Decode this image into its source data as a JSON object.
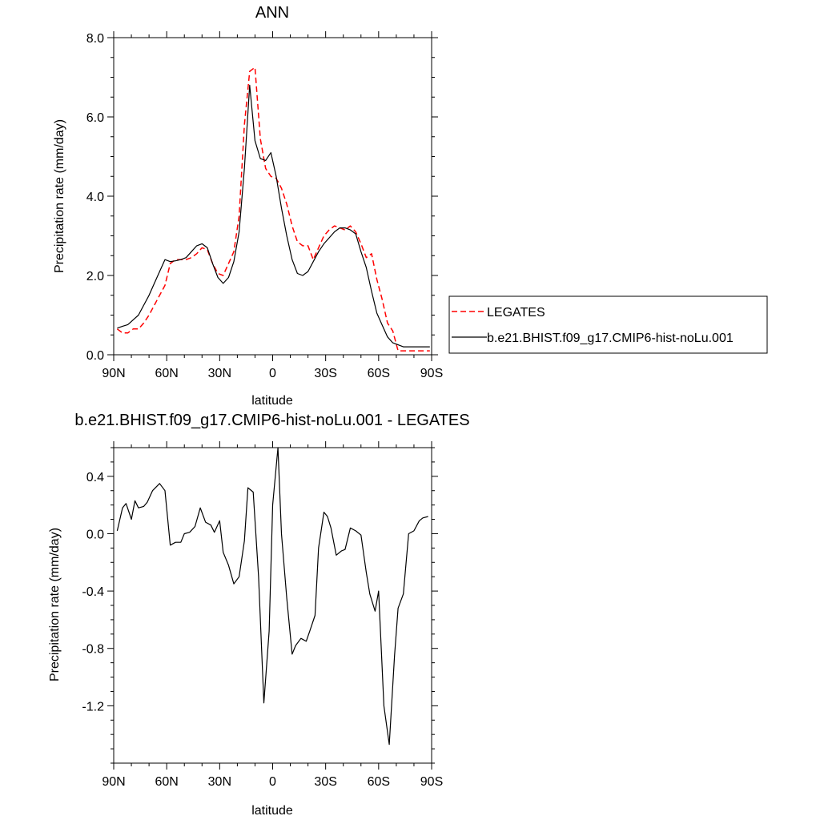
{
  "chart_data": [
    {
      "type": "line",
      "title": "ANN",
      "xlabel": "latitude",
      "ylabel": "Precipitation rate (mm/day)",
      "xlim": [
        90,
        -90
      ],
      "ylim": [
        0,
        8
      ],
      "x_ticks": [
        90,
        60,
        30,
        0,
        -30,
        -60,
        -90
      ],
      "x_tick_labels": [
        "90N",
        "60N",
        "30N",
        "0",
        "30S",
        "60S",
        "90S"
      ],
      "y_ticks": [
        0,
        2,
        4,
        6,
        8
      ],
      "y_tick_labels": [
        "0.0",
        "2.0",
        "4.0",
        "6.0",
        "8.0"
      ],
      "legend_position": "right",
      "x": [
        88,
        85,
        82,
        79,
        76,
        73,
        70,
        67,
        64,
        61,
        58,
        55,
        52,
        49,
        46,
        43,
        40,
        37,
        34,
        31,
        28,
        25,
        22,
        19,
        16,
        13,
        10,
        7,
        4,
        1,
        -2,
        -5,
        -8,
        -11,
        -14,
        -17,
        -20,
        -23,
        -26,
        -29,
        -32,
        -35,
        -38,
        -41,
        -44,
        -47,
        -50,
        -53,
        -56,
        -59,
        -62,
        -65,
        -68,
        -71,
        -74,
        -77,
        -80,
        -83,
        -86,
        -89
      ],
      "series": [
        {
          "name": "LEGATES",
          "color": "#ff0000",
          "dash": "dashed",
          "values": [
            0.65,
            0.55,
            0.55,
            0.65,
            0.65,
            0.8,
            1.0,
            1.25,
            1.5,
            1.75,
            2.3,
            2.4,
            2.4,
            2.4,
            2.45,
            2.55,
            2.7,
            2.65,
            2.3,
            2.05,
            2.0,
            2.3,
            2.6,
            3.5,
            5.8,
            7.15,
            7.25,
            5.45,
            4.7,
            4.5,
            4.45,
            4.2,
            3.8,
            3.25,
            2.85,
            2.75,
            2.75,
            2.4,
            2.7,
            3.0,
            3.15,
            3.25,
            3.2,
            3.15,
            3.25,
            3.1,
            2.8,
            2.45,
            2.55,
            1.9,
            1.4,
            0.8,
            0.6,
            0.1,
            0.1,
            0.1,
            0.1,
            0.1,
            0.1,
            0.1
          ]
        },
        {
          "name": "b.e21.BHIST.f09_g17.CMIP6-hist-noLu.001",
          "color": "#000000",
          "dash": "solid",
          "values": [
            0.67,
            0.72,
            0.76,
            0.88,
            1.0,
            1.25,
            1.5,
            1.8,
            2.1,
            2.4,
            2.35,
            2.37,
            2.4,
            2.45,
            2.6,
            2.75,
            2.8,
            2.7,
            2.3,
            1.95,
            1.8,
            1.95,
            2.35,
            3.1,
            4.7,
            6.8,
            5.4,
            4.95,
            4.9,
            5.1,
            4.5,
            3.7,
            3.0,
            2.4,
            2.05,
            2.0,
            2.1,
            2.35,
            2.6,
            2.8,
            2.95,
            3.1,
            3.2,
            3.2,
            3.15,
            3.05,
            2.6,
            2.2,
            1.6,
            1.05,
            0.75,
            0.45,
            0.3,
            0.25,
            0.2,
            0.2,
            0.2,
            0.2,
            0.2,
            0.2
          ]
        }
      ]
    },
    {
      "type": "line",
      "title": "b.e21.BHIST.f09_g17.CMIP6-hist-noLu.001 - LEGATES",
      "xlabel": "latitude",
      "ylabel": "Precipitation rate (mm/day)",
      "xlim": [
        90,
        -90
      ],
      "ylim": [
        -1.6,
        0.6
      ],
      "x_ticks": [
        90,
        60,
        30,
        0,
        -30,
        -60,
        -90
      ],
      "x_tick_labels": [
        "90N",
        "60N",
        "30N",
        "0",
        "30S",
        "60S",
        "90S"
      ],
      "y_ticks": [
        0.4,
        0.0,
        -0.4,
        -0.8,
        -1.2
      ],
      "y_tick_labels": [
        "0.4",
        "0.0",
        "-0.4",
        "-0.8",
        "-1.2"
      ],
      "x": [
        88,
        85,
        83,
        80,
        78,
        76,
        73,
        71,
        68,
        64,
        61,
        58,
        55,
        52,
        50,
        47,
        44,
        41,
        38,
        35,
        33,
        30,
        28,
        25,
        22,
        19,
        16,
        14,
        11,
        8,
        5,
        2,
        0,
        -3,
        -5,
        -8,
        -11,
        -13,
        -16,
        -19,
        -21,
        -24,
        -26,
        -29,
        -31,
        -33,
        -36,
        -39,
        -41,
        -44,
        -47,
        -50,
        -53,
        -55,
        -58,
        -60,
        -63,
        -66,
        -69,
        -71,
        -74,
        -77,
        -80,
        -83,
        -85,
        -88
      ],
      "series": [
        {
          "name": "",
          "color": "#000000",
          "dash": "solid",
          "values": [
            0.02,
            0.18,
            0.21,
            0.1,
            0.23,
            0.18,
            0.19,
            0.22,
            0.3,
            0.35,
            0.3,
            -0.08,
            -0.06,
            -0.06,
            0.0,
            0.01,
            0.05,
            0.18,
            0.08,
            0.06,
            0.01,
            0.09,
            -0.13,
            -0.22,
            -0.35,
            -0.3,
            -0.05,
            0.32,
            0.29,
            -0.3,
            -1.18,
            -0.68,
            0.2,
            0.6,
            0.0,
            -0.45,
            -0.84,
            -0.78,
            -0.73,
            -0.75,
            -0.68,
            -0.57,
            -0.1,
            0.15,
            0.12,
            0.04,
            -0.15,
            -0.12,
            -0.11,
            0.04,
            0.02,
            -0.01,
            -0.27,
            -0.42,
            -0.54,
            -0.4,
            -1.2,
            -1.47,
            -0.85,
            -0.52,
            -0.42,
            0.0,
            0.02,
            0.09,
            0.11,
            0.12
          ]
        }
      ]
    }
  ]
}
